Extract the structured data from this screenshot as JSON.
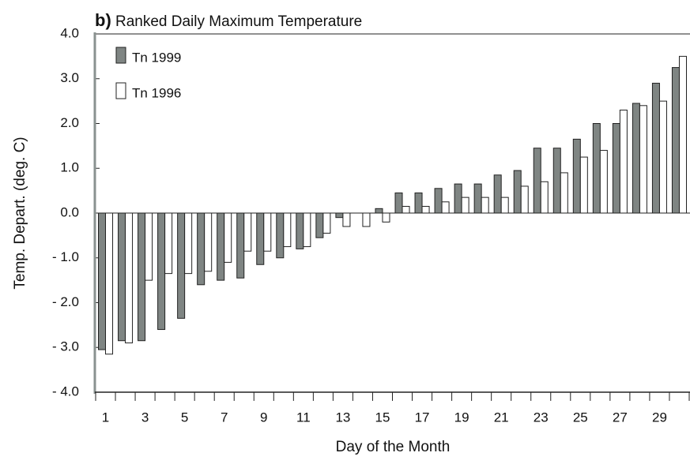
{
  "chart_data": {
    "type": "bar",
    "panel_label": "b)",
    "title": "Ranked Daily Maximum Temperature",
    "x_label": "Day of the Month",
    "y_label": "Temp. Depart. (deg. C)",
    "categories": [
      "1",
      null,
      "3",
      null,
      "5",
      null,
      "7",
      null,
      "9",
      null,
      "11",
      null,
      "13",
      null,
      "15",
      null,
      "17",
      null,
      "19",
      null,
      "21",
      null,
      "23",
      null,
      "25",
      null,
      "27",
      null,
      "29",
      null
    ],
    "series": [
      {
        "name": "Tn 1999",
        "color": "#7f8583",
        "values": [
          -3.05,
          -2.85,
          -2.85,
          -2.6,
          -2.35,
          -1.6,
          -1.5,
          -1.45,
          -1.15,
          -1.0,
          -0.8,
          -0.55,
          -0.1,
          0,
          0.1,
          0.45,
          0.45,
          0.55,
          0.65,
          0.65,
          0.85,
          0.95,
          1.45,
          1.45,
          1.65,
          2.0,
          2.0,
          2.45,
          2.9,
          3.25
        ]
      },
      {
        "name": "Tn 1996",
        "color": "#ffffff",
        "values": [
          -3.15,
          -2.9,
          -1.5,
          -1.35,
          -1.35,
          -1.3,
          -1.1,
          -0.85,
          -0.85,
          -0.75,
          -0.75,
          -0.45,
          -0.3,
          -0.3,
          -0.2,
          0.15,
          0.15,
          0.25,
          0.35,
          0.35,
          0.35,
          0.6,
          0.7,
          0.9,
          1.25,
          1.4,
          2.3,
          2.4,
          2.5,
          3.5
        ]
      }
    ],
    "ylim": [
      -4,
      4
    ],
    "yticks": [
      {
        "value": 4,
        "label": "4.0"
      },
      {
        "value": 3,
        "label": "3.0"
      },
      {
        "value": 2,
        "label": "2.0"
      },
      {
        "value": 1,
        "label": "1.0"
      },
      {
        "value": 0,
        "label": "0.0"
      },
      {
        "value": -1,
        "label": "- 1.0"
      },
      {
        "value": -2,
        "label": "- 2.0"
      },
      {
        "value": -3,
        "label": "- 3.0"
      },
      {
        "value": -4,
        "label": "- 4.0"
      }
    ],
    "legend": "upper left"
  }
}
